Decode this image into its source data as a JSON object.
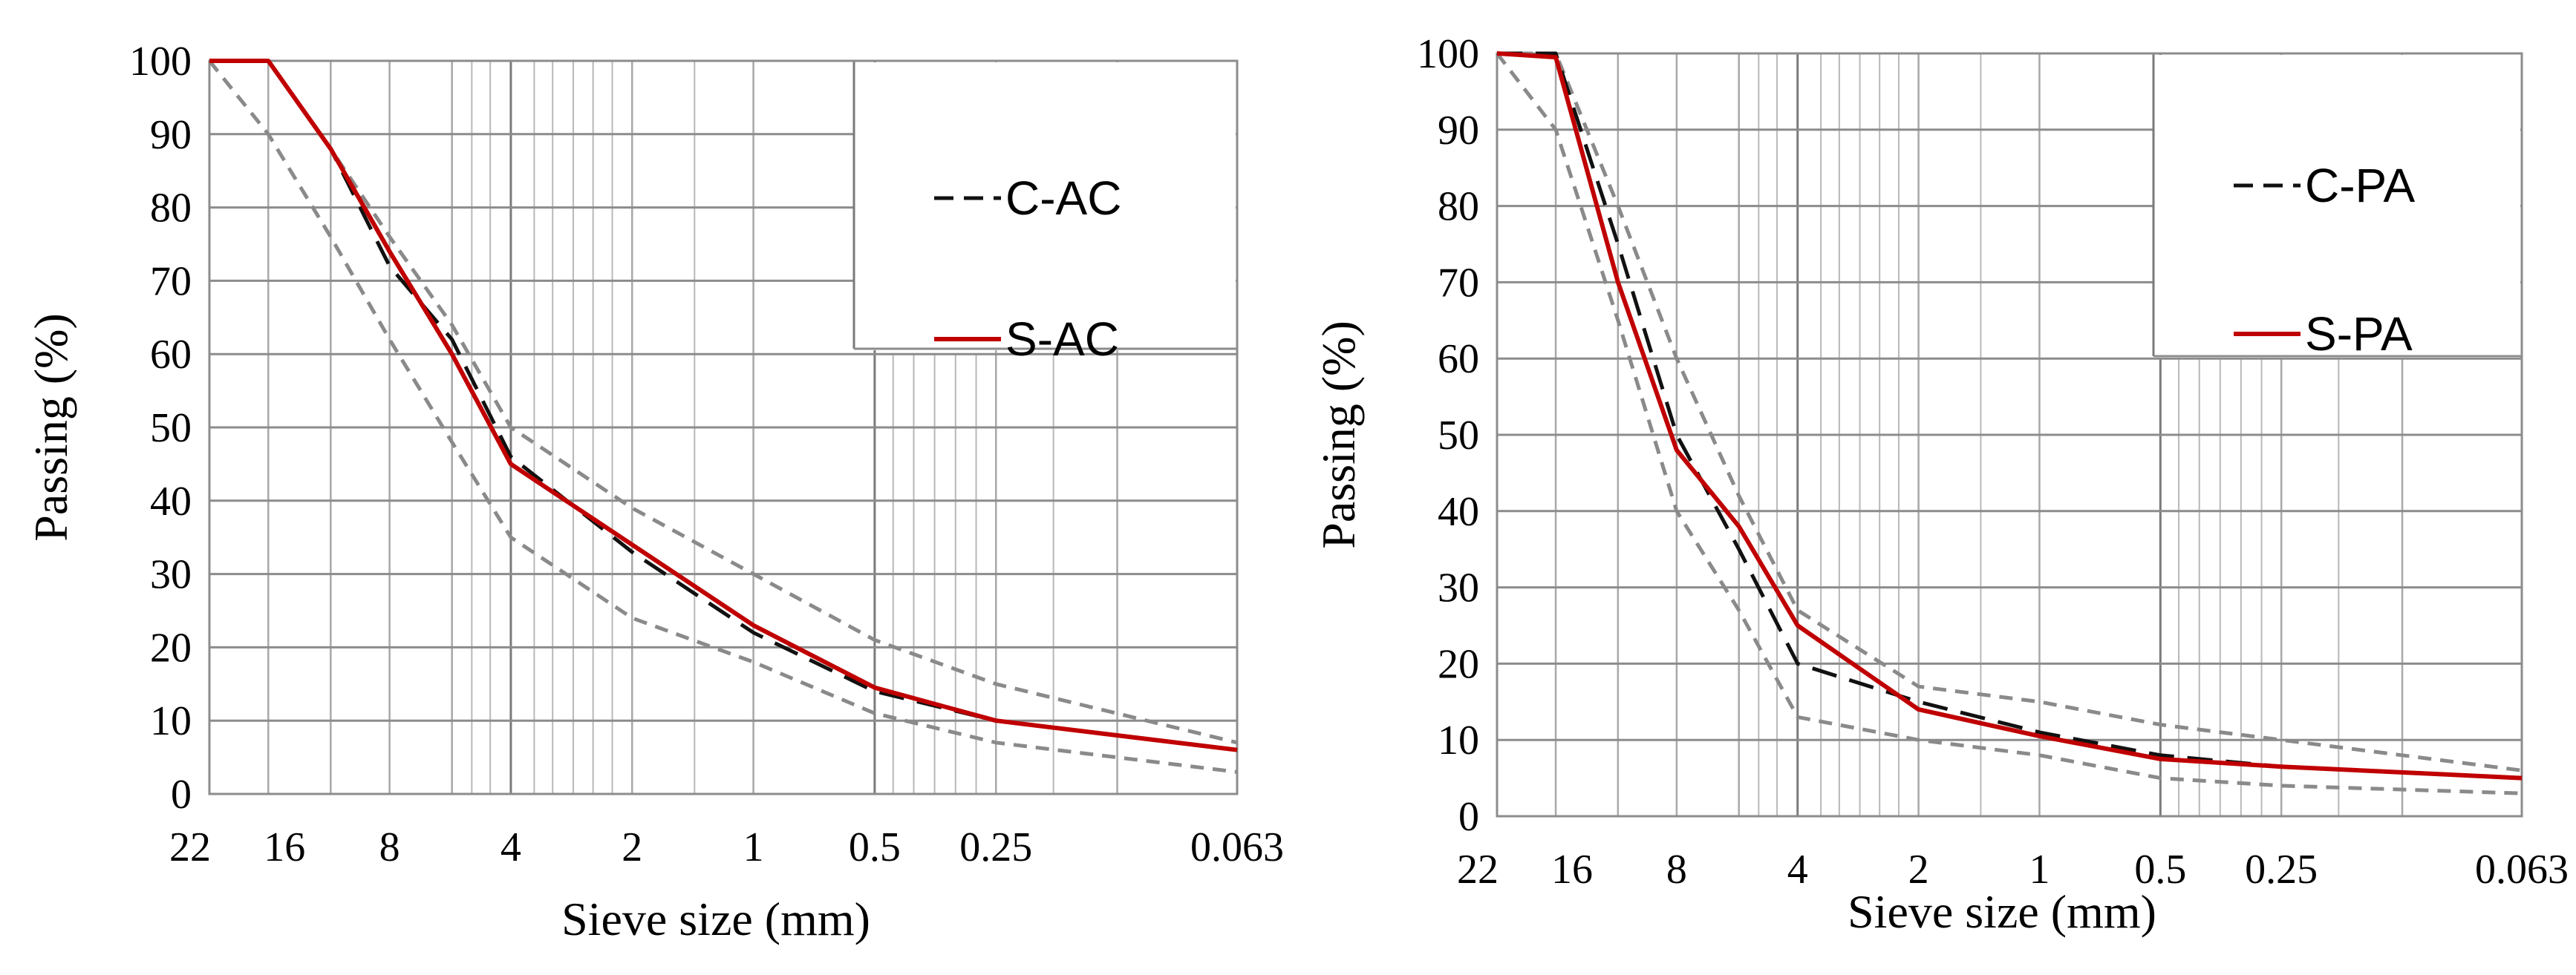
{
  "chart_data": [
    {
      "type": "line",
      "xscale": "log-reversed",
      "xlim": [
        0.063,
        22.4
      ],
      "ylim": [
        0,
        100
      ],
      "yticks": [
        0,
        10,
        20,
        30,
        40,
        50,
        60,
        70,
        80,
        90,
        100
      ],
      "xticks": [
        {
          "value": 22.4,
          "label": "22"
        },
        {
          "value": 16,
          "label": "16"
        },
        {
          "value": 8,
          "label": "8"
        },
        {
          "value": 4,
          "label": "4"
        },
        {
          "value": 2,
          "label": "2"
        },
        {
          "value": 1,
          "label": "1"
        },
        {
          "value": 0.5,
          "label": "0.5"
        },
        {
          "value": 0.25,
          "label": "0.25"
        },
        {
          "value": 0.063,
          "label": "0.063"
        }
      ],
      "major_grid_x": [
        22.4,
        16,
        11.2,
        8,
        5.6,
        4,
        2,
        1,
        0.5,
        0.25,
        0.125,
        0.063
      ],
      "fine_grid_x": [
        5.6,
        5.0,
        4.5,
        4.0,
        3.5,
        3.15,
        2.8,
        2.5,
        2.24,
        2.0,
        1.4,
        1.0,
        0.5
      ],
      "fine_grid_x_low": [
        0.5,
        0.45,
        0.4,
        0.355,
        0.315,
        0.28,
        0.25,
        0.18,
        0.125
      ],
      "xlabel": "Sieve size (mm)",
      "ylabel": "Passing (%)",
      "legend": {
        "position": "top-right",
        "entries": [
          "C-AC",
          "S-AC"
        ]
      },
      "series": [
        {
          "name": "C-AC",
          "style": "black-dashed",
          "x": [
            22.4,
            16,
            11.2,
            8,
            5.6,
            4,
            2,
            1,
            0.5,
            0.25,
            0.063
          ],
          "y": [
            100,
            100,
            88,
            72,
            62,
            46,
            33,
            22,
            14,
            10,
            6
          ]
        },
        {
          "name": "S-AC",
          "style": "red-solid",
          "x": [
            22.4,
            16,
            11.2,
            8,
            5.6,
            4,
            2,
            1,
            0.5,
            0.25,
            0.063
          ],
          "y": [
            100,
            100,
            88,
            74,
            60,
            45,
            34,
            23,
            14.5,
            10,
            6
          ]
        },
        {
          "name": "upper-limit",
          "style": "gray-dashed",
          "x": [
            22.4,
            16,
            11.2,
            8,
            5.6,
            4,
            2,
            1,
            0.5,
            0.25,
            0.063
          ],
          "y": [
            100,
            100,
            88,
            76,
            64,
            50,
            39,
            30,
            21,
            15,
            7
          ]
        },
        {
          "name": "lower-limit",
          "style": "gray-dashed",
          "x": [
            22.4,
            16,
            11.2,
            8,
            5.6,
            4,
            2,
            1,
            0.5,
            0.25,
            0.063
          ],
          "y": [
            100,
            90,
            76,
            62,
            48,
            35,
            24,
            18,
            11,
            7,
            3
          ]
        }
      ]
    },
    {
      "type": "line",
      "xscale": "log-reversed",
      "xlim": [
        0.063,
        22.4
      ],
      "ylim": [
        0,
        100
      ],
      "yticks": [
        0,
        10,
        20,
        30,
        40,
        50,
        60,
        70,
        80,
        90,
        100
      ],
      "xticks": [
        {
          "value": 22.4,
          "label": "22"
        },
        {
          "value": 16,
          "label": "16"
        },
        {
          "value": 8,
          "label": "8"
        },
        {
          "value": 4,
          "label": "4"
        },
        {
          "value": 2,
          "label": "2"
        },
        {
          "value": 1,
          "label": "1"
        },
        {
          "value": 0.5,
          "label": "0.5"
        },
        {
          "value": 0.25,
          "label": "0.25"
        },
        {
          "value": 0.063,
          "label": "0.063"
        }
      ],
      "major_grid_x": [
        22.4,
        16,
        11.2,
        8,
        5.6,
        4,
        2,
        1,
        0.5,
        0.25,
        0.125,
        0.063
      ],
      "fine_grid_x": [
        5.6,
        5.0,
        4.5,
        4.0,
        3.5,
        3.15,
        2.8,
        2.5,
        2.24,
        2.0,
        1.4,
        1.0,
        0.5
      ],
      "fine_grid_x_low": [
        0.5,
        0.45,
        0.4,
        0.355,
        0.315,
        0.28,
        0.25,
        0.18,
        0.125
      ],
      "xlabel": "Sieve size (mm)",
      "ylabel": "Passing (%)",
      "legend": {
        "position": "top-right",
        "entries": [
          "C-PA",
          "S-PA"
        ]
      },
      "series": [
        {
          "name": "C-PA",
          "style": "black-dashed",
          "x": [
            22.4,
            16,
            11.2,
            8,
            5.6,
            4,
            2,
            1,
            0.5,
            0.25,
            0.063
          ],
          "y": [
            100,
            100,
            75,
            50,
            35,
            20,
            15,
            11,
            8,
            6.5,
            5
          ]
        },
        {
          "name": "S-PA",
          "style": "red-solid",
          "x": [
            22.4,
            16,
            11.2,
            8,
            5.6,
            4,
            2,
            1,
            0.5,
            0.25,
            0.063
          ],
          "y": [
            100,
            99.5,
            70,
            48,
            38,
            25,
            14,
            10.5,
            7.5,
            6.5,
            5
          ]
        },
        {
          "name": "upper-limit",
          "style": "gray-dashed",
          "x": [
            22.4,
            16,
            11.2,
            8,
            5.6,
            4,
            2,
            1,
            0.5,
            0.25,
            0.063
          ],
          "y": [
            100,
            100,
            80,
            60,
            42,
            27,
            17,
            15,
            12,
            10,
            6
          ]
        },
        {
          "name": "lower-limit",
          "style": "gray-dashed",
          "x": [
            22.4,
            16,
            11.2,
            8,
            5.6,
            4,
            2,
            1,
            0.5,
            0.25,
            0.063
          ],
          "y": [
            100,
            90,
            65,
            40,
            27,
            13,
            10,
            8,
            5,
            4,
            3
          ]
        }
      ]
    }
  ]
}
